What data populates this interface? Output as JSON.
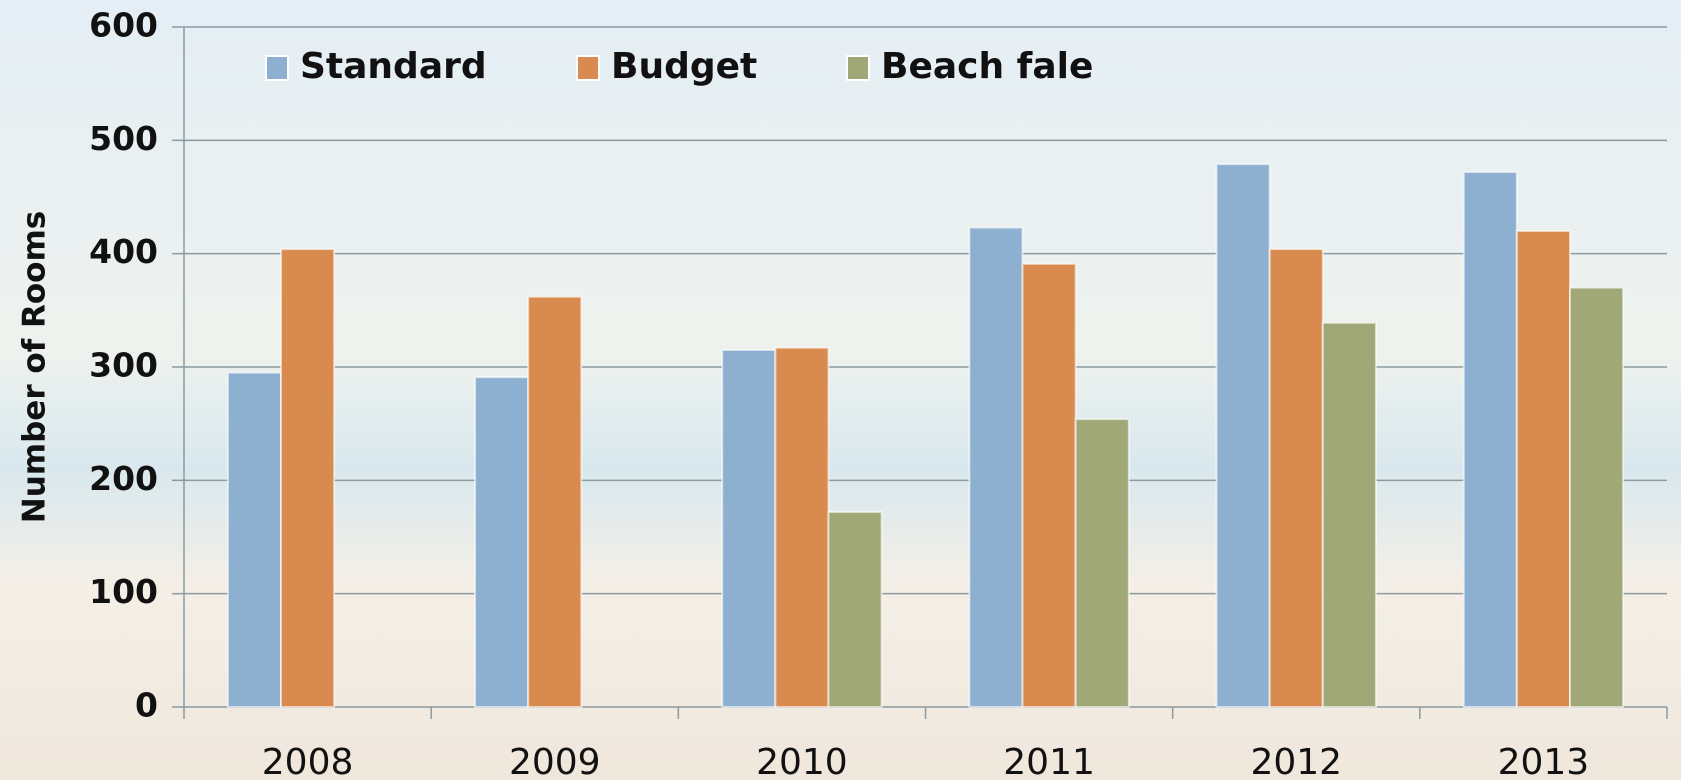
{
  "chart_data": {
    "type": "bar",
    "ylabel": "Number of Rooms",
    "categories": [
      "2008",
      "2009",
      "2010",
      "2011",
      "2012",
      "2013"
    ],
    "series": [
      {
        "name": "Standard",
        "color": "#8db0d0",
        "values": [
          295,
          291,
          315,
          423,
          479,
          472
        ]
      },
      {
        "name": "Budget",
        "color": "#d98a4e",
        "values": [
          404,
          362,
          317,
          391,
          404,
          420
        ]
      },
      {
        "name": "Beach fale",
        "color": "#a0a878",
        "values": [
          null,
          null,
          172,
          254,
          339,
          370
        ]
      }
    ],
    "ylim": [
      0,
      600
    ],
    "yticks": [
      0,
      100,
      200,
      300,
      400,
      500,
      600
    ],
    "grid": true,
    "legend": "top"
  }
}
